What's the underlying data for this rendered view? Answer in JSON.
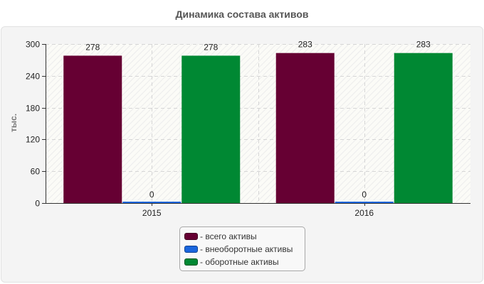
{
  "chart_data": {
    "type": "bar",
    "title": "Динамика состава активов",
    "ylabel": "тыс.",
    "xlabel": "",
    "categories": [
      "2015",
      "2016"
    ],
    "series": [
      {
        "name": "- всего активы",
        "values": [
          278,
          283
        ],
        "color": "#660033"
      },
      {
        "name": "- внеоборотные активы",
        "values": [
          0,
          0
        ],
        "color": "#1a66dd"
      },
      {
        "name": "- оборотные активы",
        "values": [
          278,
          283
        ],
        "color": "#008833"
      }
    ],
    "ylim": [
      0,
      300
    ],
    "yticks": [
      0,
      60,
      120,
      180,
      240,
      300
    ],
    "grid": true,
    "legend_position": "bottom"
  }
}
